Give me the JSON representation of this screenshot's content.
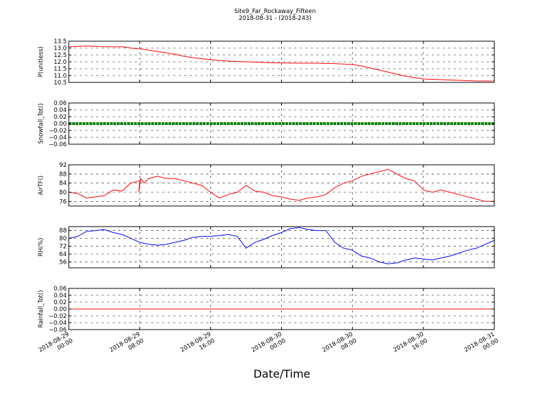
{
  "figure": {
    "title": "Site9_Far_Rockaway_Fifteen",
    "subtitle": "2018-08-31 - (2018-243)",
    "xlabel": "Date/Time"
  },
  "chart_data": [
    {
      "type": "line",
      "ylabel": "P(unitless)",
      "ylim": [
        10.5,
        13.5
      ],
      "yticks": [
        10.5,
        11.0,
        11.5,
        12.0,
        12.5,
        13.0,
        13.5
      ],
      "ytick_labels": [
        "10.5",
        "11.0",
        "11.5",
        "12.0",
        "12.5",
        "13.0",
        "13.5"
      ],
      "xlim": [
        0,
        48
      ],
      "grid": true,
      "series": [
        {
          "color": "#ff0000",
          "x": [
            0,
            2,
            4,
            6,
            7,
            8,
            9,
            10,
            11,
            12,
            13,
            14,
            16,
            18,
            20,
            22,
            24,
            26,
            28,
            30,
            30.5,
            32,
            33,
            34,
            35,
            36,
            37,
            38,
            39,
            40,
            42,
            44,
            46,
            48
          ],
          "y": [
            13.1,
            13.15,
            13.1,
            13.1,
            13.0,
            12.95,
            12.85,
            12.75,
            12.65,
            12.55,
            12.4,
            12.3,
            12.15,
            12.05,
            12.0,
            11.95,
            11.92,
            11.9,
            11.9,
            11.87,
            11.85,
            11.8,
            11.7,
            11.55,
            11.4,
            11.25,
            11.1,
            10.95,
            10.85,
            10.75,
            10.7,
            10.65,
            10.6,
            10.6
          ]
        }
      ]
    },
    {
      "type": "line",
      "ylabel": "Snowfall_Tot()",
      "ylim": [
        -0.06,
        0.06
      ],
      "yticks": [
        -0.06,
        -0.04,
        -0.02,
        0.0,
        0.02,
        0.04,
        0.06
      ],
      "ytick_labels": [
        "−0.06",
        "−0.04",
        "−0.02",
        "0.00",
        "0.02",
        "0.04",
        "0.06"
      ],
      "xlim": [
        0,
        48
      ],
      "grid": true,
      "markers": true,
      "series": [
        {
          "color": "#008000",
          "x": [
            0,
            48
          ],
          "y": [
            0.0,
            0.0
          ]
        }
      ]
    },
    {
      "type": "line",
      "ylabel": "AirTF()",
      "ylim": [
        74,
        92
      ],
      "yticks": [
        76,
        80,
        84,
        88,
        92
      ],
      "ytick_labels": [
        "76",
        "80",
        "84",
        "88",
        "92"
      ],
      "xlim": [
        0,
        48
      ],
      "grid": true,
      "series": [
        {
          "color": "#ff0000",
          "x": [
            0,
            1,
            2,
            3,
            4,
            5,
            6,
            7,
            8,
            7.9,
            8.1,
            8.5,
            9,
            10,
            11,
            12,
            13,
            14,
            15,
            16,
            17,
            18,
            19,
            20,
            21,
            22,
            23,
            24,
            25,
            26,
            27,
            28,
            29,
            30,
            31,
            32,
            33,
            34,
            35,
            36,
            37,
            38,
            39,
            40,
            41,
            42,
            43,
            44,
            45,
            46,
            47,
            48
          ],
          "y": [
            80,
            79.5,
            77.5,
            78,
            78.5,
            81,
            80.5,
            84,
            85,
            80,
            86,
            84,
            86,
            87,
            86,
            86,
            85,
            84,
            83,
            80,
            77.5,
            79,
            80,
            83,
            80.5,
            80,
            78.5,
            78,
            77,
            76.5,
            77.5,
            78,
            79,
            82,
            84,
            85,
            87,
            88,
            89,
            90,
            88,
            86,
            85,
            81,
            80,
            81,
            80,
            79,
            78,
            77,
            76,
            76
          ]
        }
      ]
    },
    {
      "type": "line",
      "ylabel": "RH(%)",
      "ylim": [
        50,
        92
      ],
      "yticks": [
        56,
        64,
        72,
        80,
        88
      ],
      "ytick_labels": [
        "56",
        "64",
        "72",
        "80",
        "88"
      ],
      "xlim": [
        0,
        48
      ],
      "grid": true,
      "series": [
        {
          "color": "#0000ff",
          "x": [
            0,
            1,
            2,
            3,
            4,
            5,
            6,
            7,
            8,
            9,
            10,
            11,
            12,
            13,
            14,
            15,
            16,
            17,
            18,
            19,
            20,
            21,
            22,
            23,
            24,
            25,
            26,
            27,
            28,
            29,
            30,
            31,
            32,
            33,
            34,
            35,
            36,
            37,
            38,
            39,
            40,
            41,
            42,
            43,
            44,
            45,
            46,
            47,
            48
          ],
          "y": [
            80,
            82,
            87,
            88,
            89,
            86,
            84,
            80,
            76,
            74,
            73,
            74,
            76,
            78,
            81,
            82,
            82,
            83,
            84,
            82,
            70,
            76,
            79,
            83,
            86,
            90,
            91,
            89,
            88,
            88,
            76,
            70,
            68,
            62,
            60,
            56,
            54,
            55,
            58,
            60,
            59,
            58,
            60,
            62,
            65,
            68,
            70,
            74,
            78
          ]
        }
      ]
    },
    {
      "type": "line",
      "ylabel": "Rainfall_Tot()",
      "ylim": [
        -0.06,
        0.06
      ],
      "yticks": [
        -0.06,
        -0.04,
        -0.02,
        0.0,
        0.02,
        0.04,
        0.06
      ],
      "ytick_labels": [
        "−0.06",
        "−0.04",
        "−0.02",
        "0.00",
        "0.02",
        "0.04",
        "0.06"
      ],
      "xlim": [
        0,
        48
      ],
      "grid": true,
      "series": [
        {
          "color": "#ff0000",
          "x": [
            0,
            48
          ],
          "y": [
            0.0,
            0.0
          ]
        }
      ]
    }
  ],
  "x_axis": {
    "ticks": [
      0,
      8,
      16,
      24,
      32,
      40,
      48
    ],
    "tick_labels": [
      [
        "2018-08-29",
        "00:00"
      ],
      [
        "2018-08-29",
        "08:00"
      ],
      [
        "2018-08-29",
        "16:00"
      ],
      [
        "2018-08-30",
        "00:00"
      ],
      [
        "2018-08-30",
        "08:00"
      ],
      [
        "2018-08-30",
        "16:00"
      ],
      [
        "2018-08-31",
        "00:00"
      ]
    ]
  }
}
